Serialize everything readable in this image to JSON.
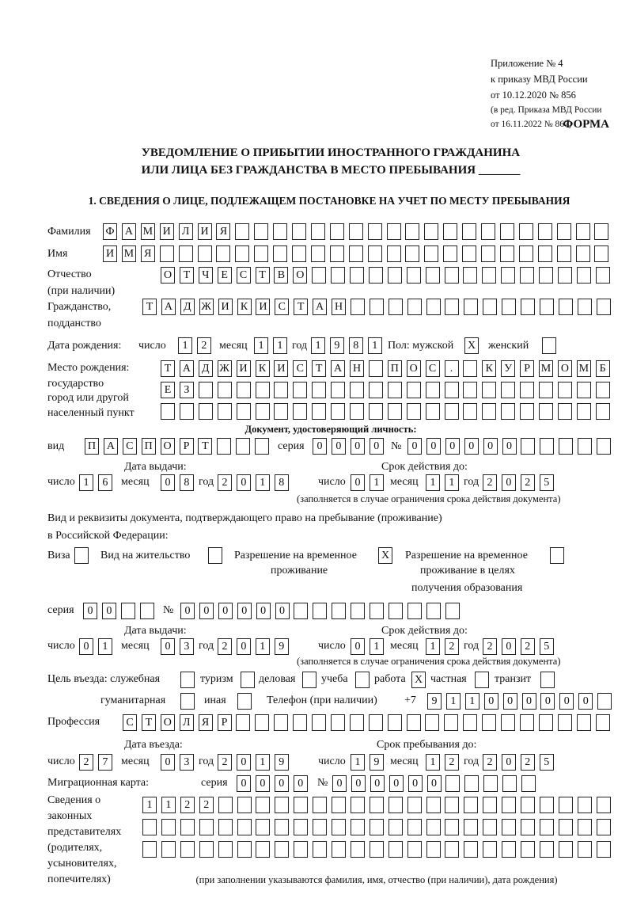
{
  "header": {
    "appendix": [
      "Приложение № 4",
      "к приказу МВД России",
      "от 10.12.2020 № 856"
    ],
    "edition": [
      "(в ред. Приказа МВД России",
      "от 16.11.2022 № 867)"
    ],
    "form_label": "ФОРМА",
    "title_line1": "УВЕДОМЛЕНИЕ О ПРИБЫТИИ ИНОСТРАННОГО ГРАЖДАНИНА",
    "title_line2": "ИЛИ ЛИЦА БЕЗ ГРАЖДАНСТВА В МЕСТО ПРЕБЫВАНИЯ _______",
    "section1": "1. СВЕДЕНИЯ О ЛИЦЕ, ПОДЛЕЖАЩЕМ ПОСТАНОВКЕ НА УЧЕТ ПО МЕСТУ ПРЕБЫВАНИЯ"
  },
  "labels": {
    "surname": "Фамилия",
    "name": "Имя",
    "patronymic": "Отчество",
    "patronymic_note": "(при наличии)",
    "citizenship": "Гражданство,",
    "citizenship2": "подданство",
    "birth_date": "Дата рождения:",
    "day": "число",
    "month": "месяц",
    "year": "год",
    "sex": "Пол: мужской",
    "female": "женский",
    "birth_place": "Место рождения:",
    "state": "государство",
    "city": "город или другой",
    "settlement": "населенный пункт",
    "id_doc": "Документ, удостоверяющий личность:",
    "kind": "вид",
    "series": "серия",
    "number": "№",
    "issue_date": "Дата выдачи:",
    "valid_until": "Срок действия до:",
    "validity_note": "(заполняется в случае ограничения срока действия документа)",
    "stay_doc": "Вид и реквизиты документа, подтверждающего право на пребывание (проживание)",
    "stay_doc2": "в Российской Федерации:",
    "visa": "Виза",
    "residence": "Вид на жительство",
    "trp": "Разрешение на временное",
    "trp2": "проживание",
    "trp_edu": "Разрешение на временное",
    "trp_edu2": "проживание в целях",
    "trp_edu3": "получения образования",
    "purpose": "Цель въезда: служебная",
    "tourism": "туризм",
    "business": "деловая",
    "study": "учеба",
    "work": "работа",
    "private": "частная",
    "transit": "транзит",
    "humanitarian": "гуманитарная",
    "other": "иная",
    "phone": "Телефон (при наличии)",
    "phone_prefix": "+7",
    "profession": "Профессия",
    "entry_date": "Дата въезда:",
    "stay_until": "Срок пребывания до:",
    "migration_card": "Миграционная карта:",
    "reps": [
      "Сведения о",
      "законных",
      "представителях",
      "(родителях,",
      "усыновителях,",
      "попечителях)"
    ],
    "reps_note": "(при заполнении указываются фамилия, имя, отчество (при наличии), дата рождения)"
  },
  "fields": {
    "surname": [
      "Ф",
      "А",
      "М",
      "И",
      "Л",
      "И",
      "Я",
      "",
      "",
      "",
      "",
      "",
      "",
      "",
      "",
      "",
      "",
      "",
      "",
      "",
      "",
      "",
      "",
      "",
      "",
      "",
      ""
    ],
    "name": [
      "И",
      "М",
      "Я",
      "",
      "",
      "",
      "",
      "",
      "",
      "",
      "",
      "",
      "",
      "",
      "",
      "",
      "",
      "",
      "",
      "",
      "",
      "",
      "",
      "",
      "",
      "",
      ""
    ],
    "patronymic": [
      "О",
      "Т",
      "Ч",
      "Е",
      "С",
      "Т",
      "В",
      "О",
      "",
      "",
      "",
      "",
      "",
      "",
      "",
      "",
      "",
      "",
      "",
      "",
      "",
      "",
      "",
      ""
    ],
    "citizenship": [
      "Т",
      "А",
      "Д",
      "Ж",
      "И",
      "К",
      "И",
      "С",
      "Т",
      "А",
      "Н",
      "",
      "",
      "",
      "",
      "",
      "",
      "",
      "",
      "",
      "",
      "",
      "",
      "",
      ""
    ],
    "birth_day": [
      "1",
      "2"
    ],
    "birth_month": [
      "1",
      "1"
    ],
    "birth_year": [
      "1",
      "9",
      "8",
      "1"
    ],
    "sex_male": "X",
    "sex_female": "",
    "birth_place1": [
      "Т",
      "А",
      "Д",
      "Ж",
      "И",
      "К",
      "И",
      "С",
      "Т",
      "А",
      "Н",
      "",
      "П",
      "О",
      "С",
      ".",
      "",
      "К",
      "У",
      "Р",
      "М",
      "О",
      "М",
      "Б"
    ],
    "birth_place2": [
      "Е",
      "З",
      "",
      "",
      "",
      "",
      "",
      "",
      "",
      "",
      "",
      "",
      "",
      "",
      "",
      "",
      "",
      "",
      "",
      "",
      "",
      "",
      "",
      ""
    ],
    "birth_place3": [
      "",
      "",
      "",
      "",
      "",
      "",
      "",
      "",
      "",
      "",
      "",
      "",
      "",
      "",
      "",
      "",
      "",
      "",
      "",
      "",
      "",
      "",
      "",
      ""
    ],
    "id_kind": [
      "П",
      "А",
      "С",
      "П",
      "О",
      "Р",
      "Т",
      "",
      "",
      ""
    ],
    "id_series": [
      "0",
      "0",
      "0",
      "0"
    ],
    "id_number": [
      "0",
      "0",
      "0",
      "0",
      "0",
      "0",
      "",
      "",
      "",
      "",
      ""
    ],
    "id_issue_day": [
      "1",
      "6"
    ],
    "id_issue_month": [
      "0",
      "8"
    ],
    "id_issue_year": [
      "2",
      "0",
      "1",
      "8"
    ],
    "id_valid_day": [
      "0",
      "1"
    ],
    "id_valid_month": [
      "1",
      "1"
    ],
    "id_valid_year": [
      "2",
      "0",
      "2",
      "5"
    ],
    "visa": "",
    "residence": "",
    "trp": "X",
    "trp_edu": "",
    "stay_series": [
      "0",
      "0",
      "",
      ""
    ],
    "stay_number": [
      "0",
      "0",
      "0",
      "0",
      "0",
      "0",
      "",
      "",
      "",
      "",
      "",
      "",
      "",
      "",
      ""
    ],
    "stay_issue_day": [
      "0",
      "1"
    ],
    "stay_issue_month": [
      "0",
      "3"
    ],
    "stay_issue_year": [
      "2",
      "0",
      "1",
      "9"
    ],
    "stay_valid_day": [
      "0",
      "1"
    ],
    "stay_valid_month": [
      "1",
      "2"
    ],
    "stay_valid_year": [
      "2",
      "0",
      "2",
      "5"
    ],
    "p_official": "",
    "p_tourism": "",
    "p_business": "",
    "p_study": "",
    "p_work": "X",
    "p_private": "",
    "p_transit": "",
    "p_humanitarian": "",
    "p_other": "",
    "phone": [
      "9",
      "1",
      "1",
      "0",
      "0",
      "0",
      "0",
      "0",
      "0",
      ""
    ],
    "profession": [
      "С",
      "Т",
      "О",
      "Л",
      "Я",
      "Р",
      "",
      "",
      "",
      "",
      "",
      "",
      "",
      "",
      "",
      "",
      "",
      "",
      "",
      "",
      "",
      "",
      "",
      "",
      "",
      ""
    ],
    "entry_day": [
      "2",
      "7"
    ],
    "entry_month": [
      "0",
      "3"
    ],
    "entry_year": [
      "2",
      "0",
      "1",
      "9"
    ],
    "stay_day": [
      "1",
      "9"
    ],
    "stay_month": [
      "1",
      "2"
    ],
    "stay_year": [
      "2",
      "0",
      "2",
      "5"
    ],
    "mc_series": [
      "0",
      "0",
      "0",
      "0"
    ],
    "mc_number": [
      "0",
      "0",
      "0",
      "0",
      "0",
      "0",
      "",
      "",
      "",
      "",
      ""
    ],
    "reps1": [
      "1",
      "1",
      "2",
      "2",
      "",
      "",
      "",
      "",
      "",
      "",
      "",
      "",
      "",
      "",
      "",
      "",
      "",
      "",
      "",
      "",
      "",
      "",
      "",
      "",
      ""
    ],
    "reps2": [
      "",
      "",
      "",
      "",
      "",
      "",
      "",
      "",
      "",
      "",
      "",
      "",
      "",
      "",
      "",
      "",
      "",
      "",
      "",
      "",
      "",
      "",
      "",
      "",
      ""
    ],
    "reps3": [
      "",
      "",
      "",
      "",
      "",
      "",
      "",
      "",
      "",
      "",
      "",
      "",
      "",
      "",
      "",
      "",
      "",
      "",
      "",
      "",
      "",
      "",
      "",
      "",
      ""
    ]
  }
}
